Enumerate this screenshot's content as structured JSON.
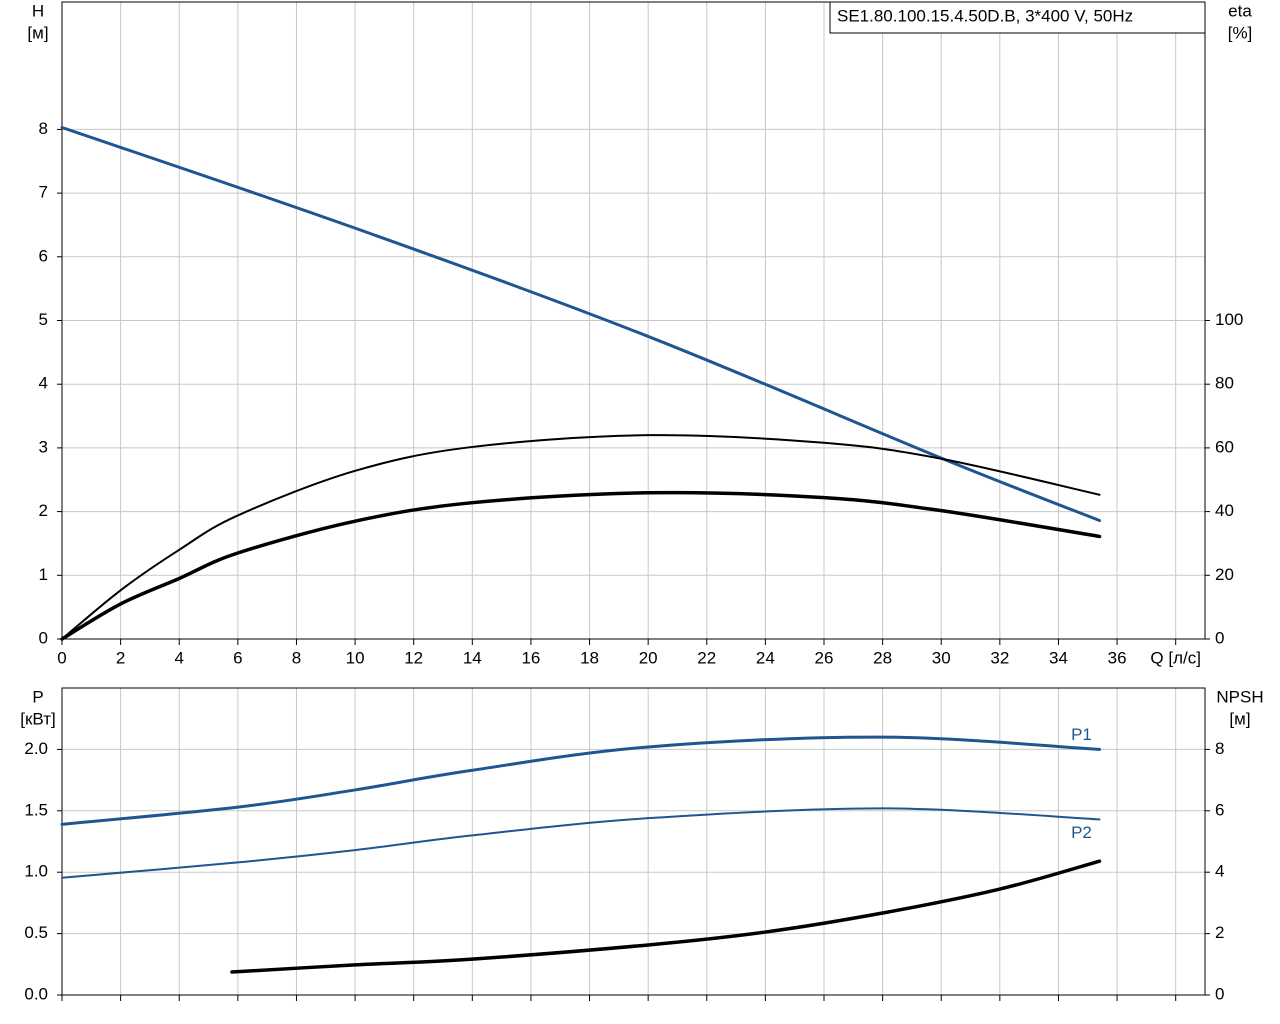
{
  "chart_data": [
    {
      "type": "line",
      "title": "SE1.80.100.15.4.50D.B, 3*400 V, 50Hz",
      "ylabel": "H",
      "yunit": "[м]",
      "y2label": "eta",
      "y2unit": "[%]",
      "xlim": [
        0,
        39
      ],
      "ylim": [
        0,
        10
      ],
      "y2lim": [
        0,
        200
      ],
      "xticks": [
        0,
        2,
        4,
        6,
        8,
        10,
        12,
        14,
        16,
        18,
        20,
        22,
        24,
        26,
        28,
        30,
        32,
        34,
        36,
        {
          "value": 38,
          "label": "Q [л/с]"
        }
      ],
      "yticks": [
        0,
        1,
        2,
        3,
        4,
        5,
        6,
        7,
        8
      ],
      "y2ticks": [
        0,
        20,
        40,
        60,
        80,
        100
      ],
      "grid": true,
      "series": [
        {
          "color": "#1f5591",
          "width": 3,
          "x": [
            0,
            10,
            20,
            30,
            35.4
          ],
          "values": [
            8.03,
            6.45,
            4.75,
            2.84,
            1.86
          ]
        },
        {
          "color": "#000000",
          "width": 2,
          "axis": "y2",
          "x": [
            0,
            2,
            4,
            6,
            10,
            14,
            20,
            26,
            30,
            35.4
          ],
          "values": [
            0,
            15.3,
            28,
            38.8,
            52.8,
            60.3,
            64,
            61.6,
            56.6,
            45.3
          ]
        },
        {
          "color": "#000000",
          "width": 3.5,
          "axis": "y2",
          "x": [
            0,
            2,
            4,
            6,
            10,
            14,
            20,
            26,
            30,
            35.4
          ],
          "values": [
            0,
            11,
            19,
            27,
            37,
            42.8,
            45.9,
            44.4,
            40.3,
            32.2
          ]
        }
      ]
    },
    {
      "type": "line",
      "ylabel": "P",
      "yunit": "[кВт]",
      "y2label": "NPSH",
      "y2unit": "[м]",
      "xlim": [
        0,
        39
      ],
      "ylim": [
        0,
        2.5
      ],
      "y2lim": [
        0,
        10
      ],
      "xticks": [
        0,
        2,
        4,
        6,
        8,
        10,
        12,
        14,
        16,
        18,
        20,
        22,
        24,
        26,
        28,
        30,
        32,
        34,
        36,
        38
      ],
      "show_xtick_labels": false,
      "yticks": [
        {
          "value": 0,
          "label": "0.0"
        },
        0.5,
        {
          "value": 1,
          "label": "1.0"
        },
        1.5,
        {
          "value": 2,
          "label": "2.0"
        }
      ],
      "y2ticks": [
        0,
        2,
        4,
        6,
        8
      ],
      "grid": true,
      "series": [
        {
          "name": "P1",
          "color": "#1f5591",
          "width": 3,
          "x": [
            0,
            6,
            10,
            14,
            20,
            28,
            35.4
          ],
          "values": [
            1.39,
            1.53,
            1.67,
            1.83,
            2.02,
            2.1,
            2.0
          ]
        },
        {
          "name": "P2",
          "color": "#1f5591",
          "width": 2,
          "x": [
            0,
            6,
            10,
            14,
            20,
            28,
            35.4
          ],
          "values": [
            0.955,
            1.08,
            1.18,
            1.3,
            1.44,
            1.52,
            1.43
          ]
        },
        {
          "color": "#000000",
          "width": 3.5,
          "axis": "y2",
          "x": [
            5.8,
            10,
            14,
            20,
            24,
            28,
            32,
            35.4
          ],
          "values": [
            0.75,
            0.98,
            1.17,
            1.63,
            2.05,
            2.67,
            3.45,
            4.36
          ]
        }
      ]
    }
  ]
}
